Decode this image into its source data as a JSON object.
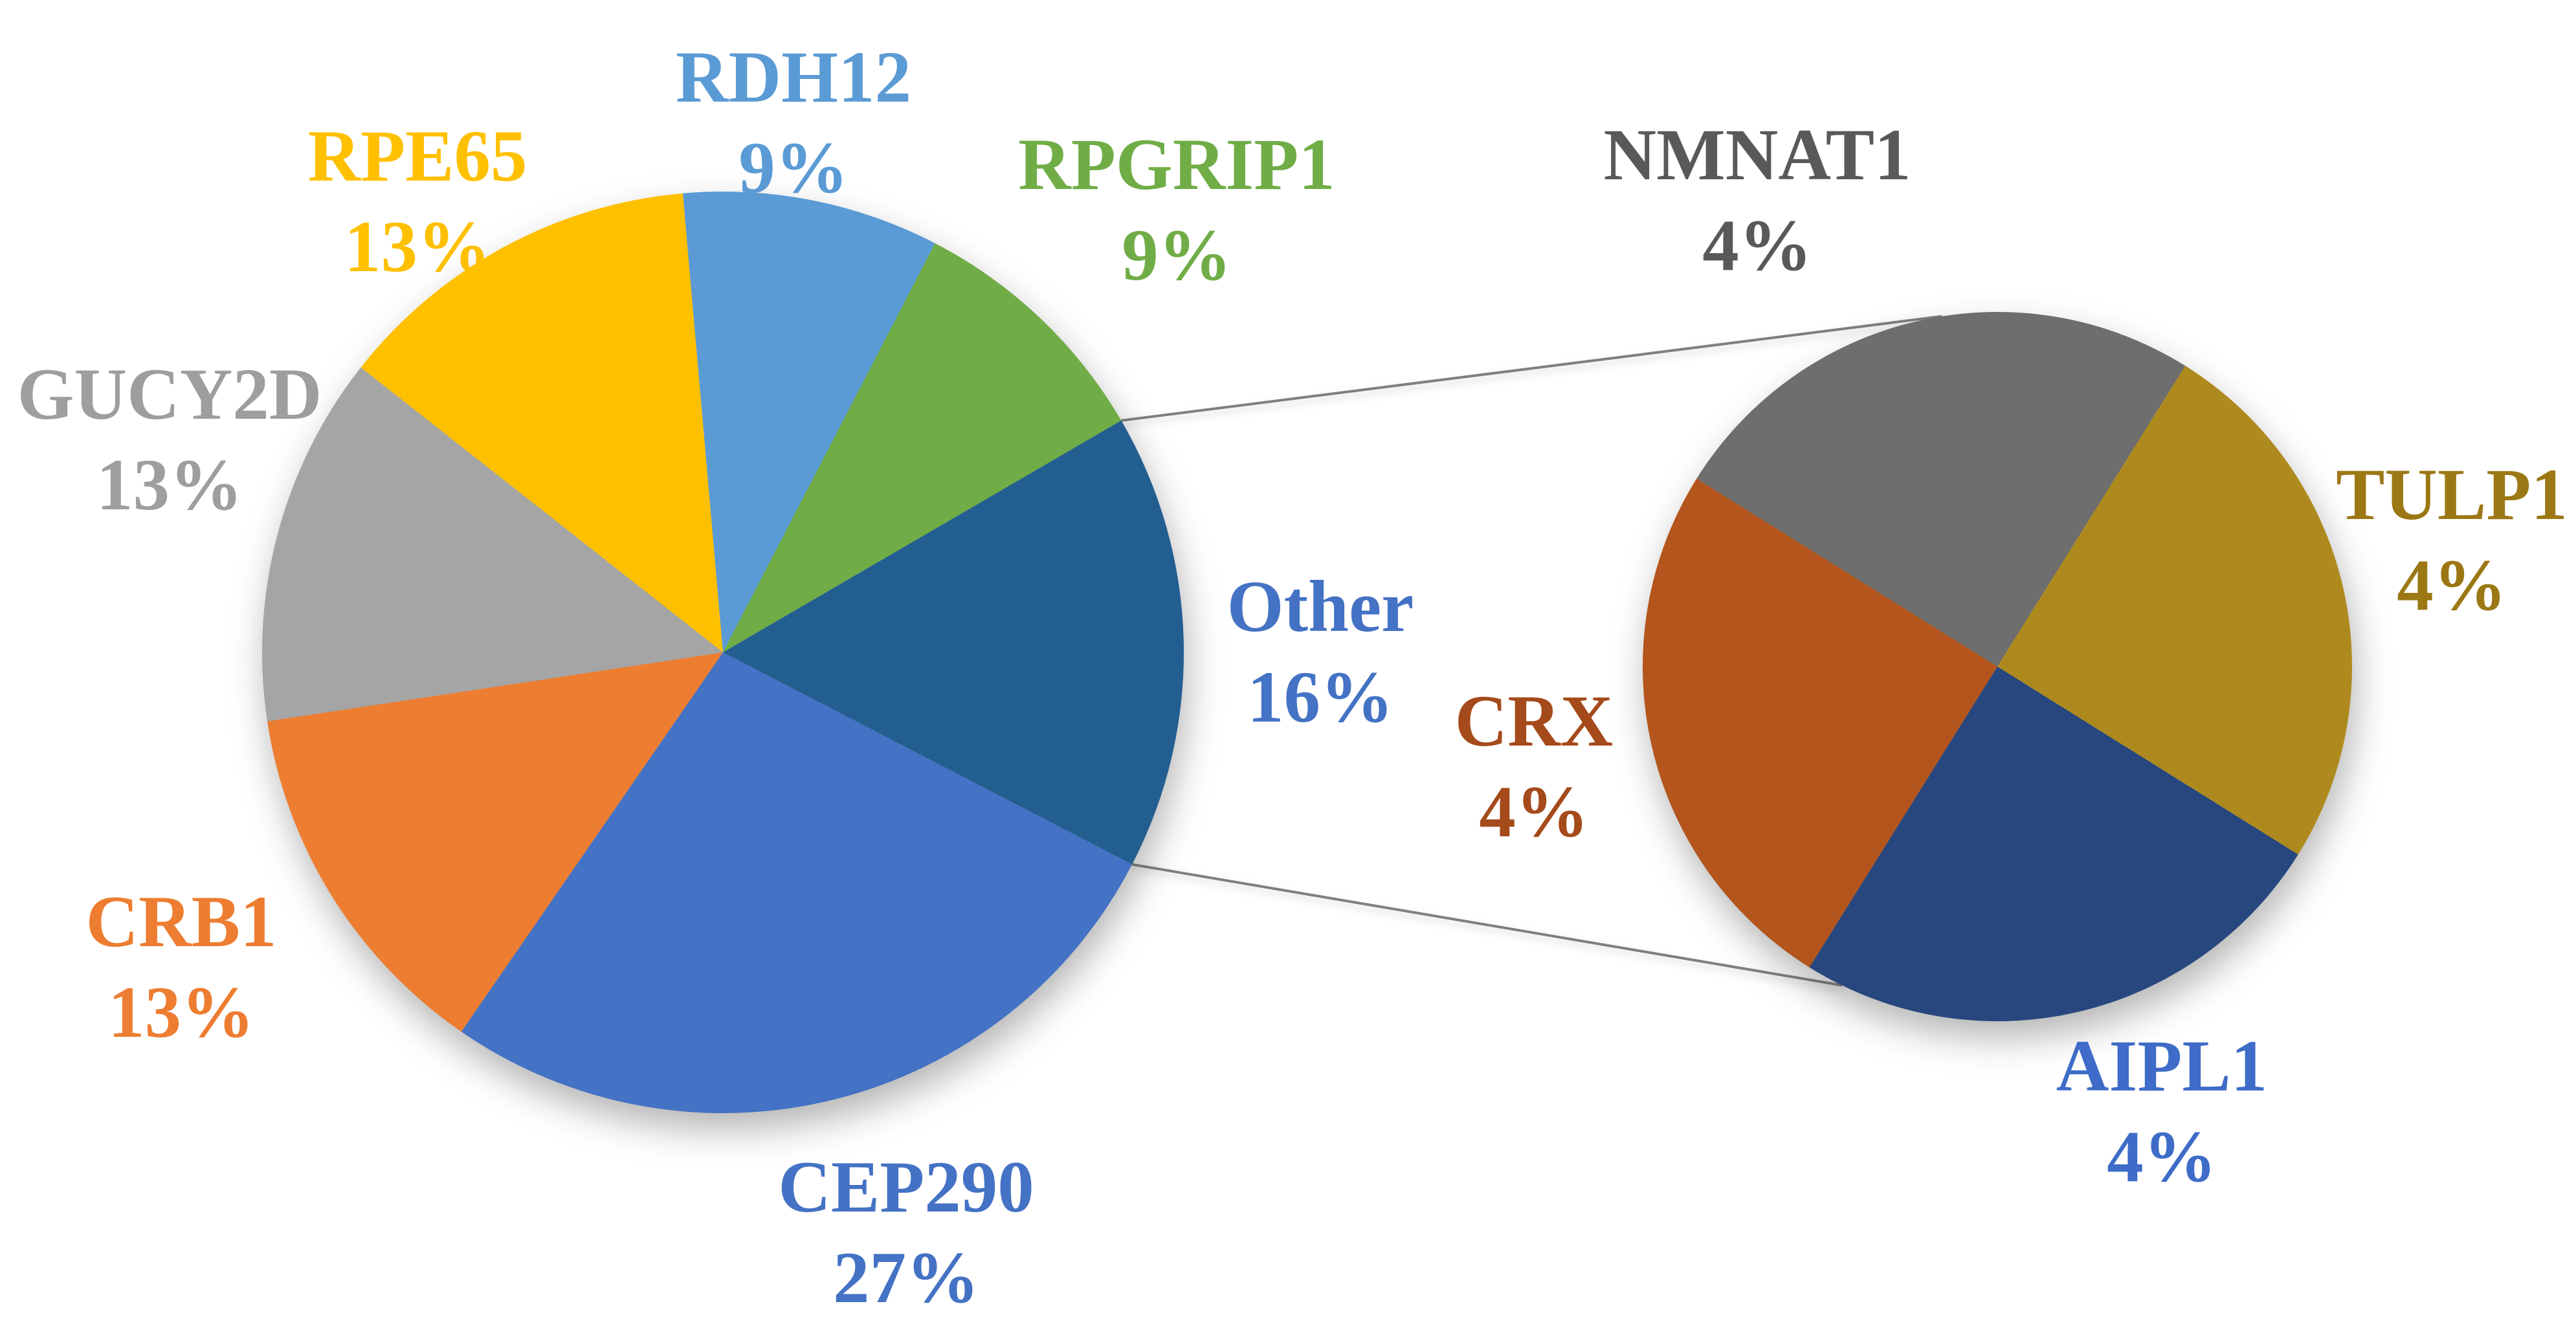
{
  "chart_data": {
    "type": "pie-of-pie",
    "background_color": "#FFFFFF",
    "main_pie": {
      "center": [
        1117,
        1008
      ],
      "radius": 712,
      "start_angle_deg": -5,
      "direction": "clockwise",
      "slices": [
        {
          "name": "RDH12",
          "pct": 9,
          "pct_label": "9%",
          "color": "#5B9BD5",
          "label_color": "#5B9BD5"
        },
        {
          "name": "RPGRIP1",
          "pct": 9,
          "pct_label": "9%",
          "color": "#70AD47",
          "label_color": "#70AD47"
        },
        {
          "name": "Other",
          "pct": 16,
          "pct_label": "16%",
          "color": "#235E90",
          "label_color": "#4472C4"
        },
        {
          "name": "CEP290",
          "pct": 27,
          "pct_label": "27%",
          "color": "#4472C4",
          "label_color": "#4472C4"
        },
        {
          "name": "CRB1",
          "pct": 13,
          "pct_label": "13%",
          "color": "#ED7D31",
          "label_color": "#ED7D31"
        },
        {
          "name": "GUCY2D",
          "pct": 13,
          "pct_label": "13%",
          "color": "#A5A5A5",
          "label_color": "#9E9E9E"
        },
        {
          "name": "RPE65",
          "pct": 13,
          "pct_label": "13%",
          "color": "#FFC000",
          "label_color": "#FFC000"
        }
      ]
    },
    "secondary_pie": {
      "center": [
        3086,
        1030
      ],
      "radius": 548,
      "start_angle_deg": -58,
      "direction": "clockwise",
      "slices": [
        {
          "name": "NMNAT1",
          "pct": 4,
          "pct_label": "4%",
          "color": "#6E6E6E",
          "label_color": "#595959"
        },
        {
          "name": "TULP1",
          "pct": 4,
          "pct_label": "4%",
          "color": "#AE8A1E",
          "label_color": "#9C7815"
        },
        {
          "name": "AIPL1",
          "pct": 4,
          "pct_label": "4%",
          "color": "#27477E",
          "label_color": "#3E6CC8"
        },
        {
          "name": "CRX",
          "pct": 4,
          "pct_label": "4%",
          "color": "#B3551C",
          "label_color": "#A54A1A"
        }
      ]
    },
    "connectors": {
      "from_slice": "Other",
      "secondary_attach_angles_deg": [
        351,
        206
      ],
      "color": "#7F7F7F",
      "width": 4
    }
  }
}
